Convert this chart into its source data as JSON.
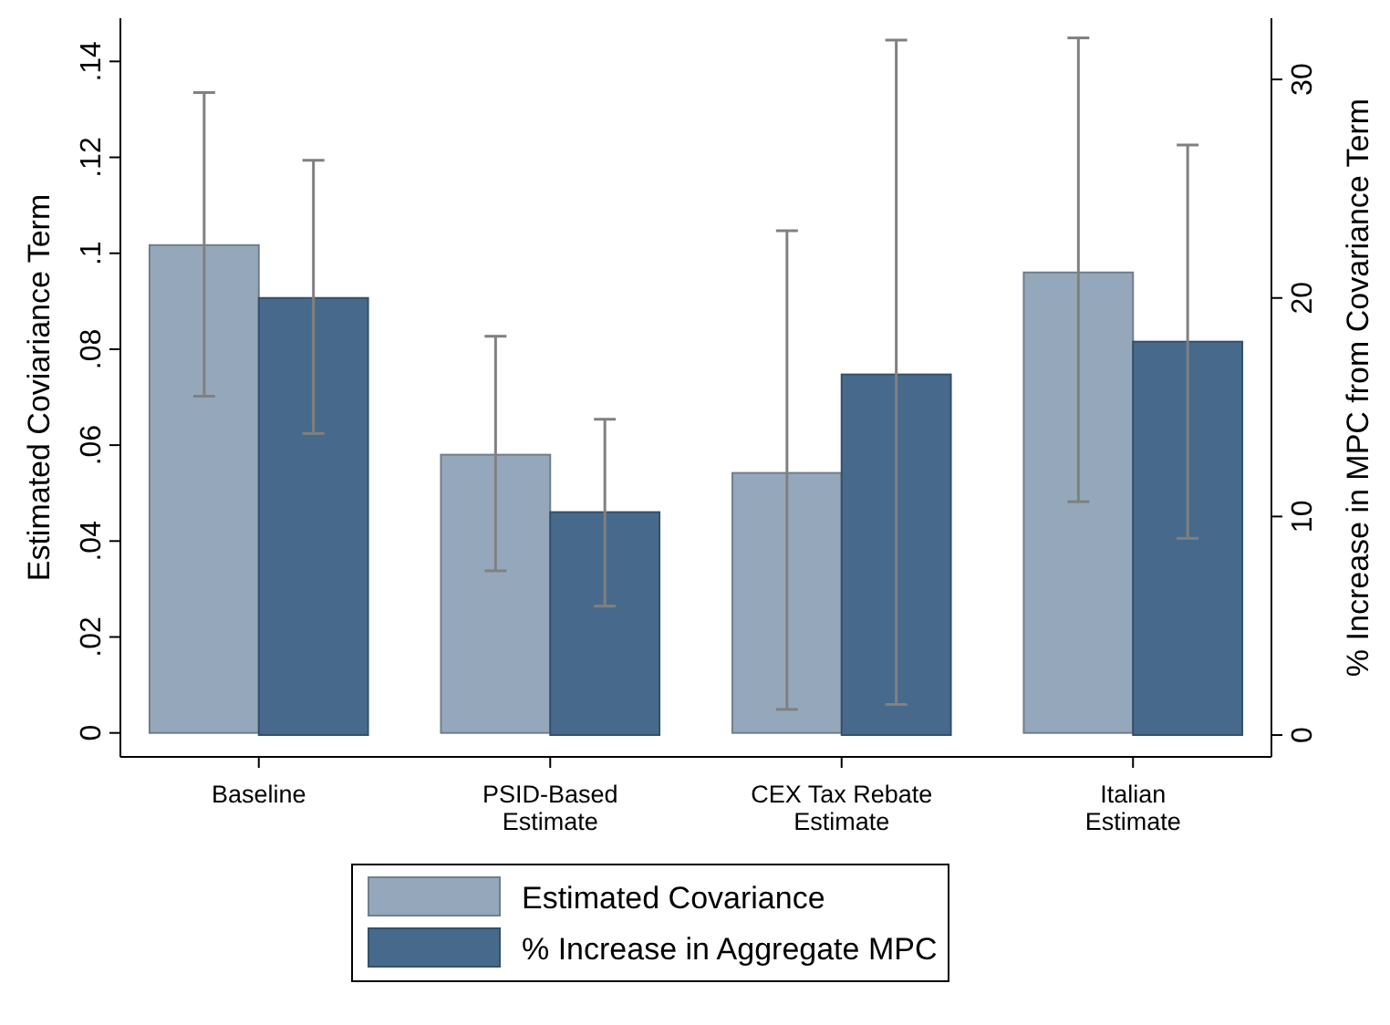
{
  "chart_data": {
    "type": "bar",
    "ylabel": "Estimated Coviariance Term",
    "y2label": "% Increase in MPC from Covariance Term",
    "categories": [
      "Baseline",
      "PSID-Based\nEstimate",
      "CEX Tax Rebate\nEstimate",
      "Italian\nEstimate"
    ],
    "series": [
      {
        "name": "Estimated Covariance",
        "color": "#95a8bb",
        "values": [
          0.1017,
          0.058,
          0.0542,
          0.096
        ],
        "errors": [
          [
            0.0702,
            0.1335
          ],
          [
            0.0338,
            0.0827
          ],
          [
            0.0049,
            0.1047
          ],
          [
            0.0482,
            0.1449
          ]
        ]
      },
      {
        "name": "% Increase in Aggregate MPC",
        "color": "#476a8c",
        "axis": "y2",
        "values": [
          20.0,
          10.2,
          16.5,
          18.0
        ],
        "errors": [
          [
            13.8,
            26.3
          ],
          [
            5.9,
            14.45
          ],
          [
            1.4,
            31.8
          ],
          [
            9.0,
            27.0
          ]
        ]
      }
    ],
    "ylim": [
      -0.005,
      0.149
    ],
    "yticks": [
      {
        "value": 0,
        "label": "0"
      },
      {
        "value": 0.02,
        "label": ".02"
      },
      {
        "value": 0.04,
        "label": ".04"
      },
      {
        "value": 0.06,
        "label": ".06"
      },
      {
        "value": 0.08,
        "label": ".08"
      },
      {
        "value": 0.1,
        "label": ".1"
      },
      {
        "value": 0.12,
        "label": ".12"
      },
      {
        "value": 0.14,
        "label": ".14"
      }
    ],
    "y2lim": [
      -1.0,
      32.8
    ],
    "y2ticks": [
      0,
      10,
      20,
      30
    ],
    "grid": false,
    "legend": "bottom"
  }
}
